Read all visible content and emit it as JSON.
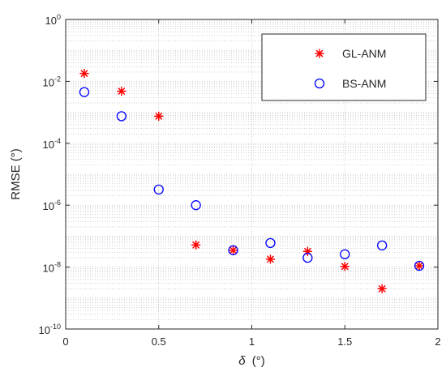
{
  "chart_data": {
    "type": "scatter",
    "title": "",
    "xlabel_symbol": "δ",
    "xlabel_unit": "(°)",
    "ylabel": "RMSE (°)",
    "xlim": [
      0,
      2
    ],
    "ylim": [
      1e-10,
      1
    ],
    "yscale": "log",
    "grid": true,
    "grid_style": "dotted",
    "legend_position": "top-right",
    "x_ticks": [
      {
        "value": 0,
        "label": "0"
      },
      {
        "value": 0.5,
        "label": "0.5"
      },
      {
        "value": 1,
        "label": "1"
      },
      {
        "value": 1.5,
        "label": "1.5"
      },
      {
        "value": 2,
        "label": "2"
      }
    ],
    "y_ticks": [
      {
        "value": 1.0,
        "base": "10",
        "exp": "0"
      },
      {
        "value": 0.01,
        "base": "10",
        "exp": "-2"
      },
      {
        "value": 0.0001,
        "base": "10",
        "exp": "-4"
      },
      {
        "value": 1e-06,
        "base": "10",
        "exp": "-6"
      },
      {
        "value": 1e-08,
        "base": "10",
        "exp": "-8"
      },
      {
        "value": 1e-10,
        "base": "10",
        "exp": "-10"
      }
    ],
    "series": [
      {
        "name": "GL-ANM",
        "marker": "asterisk",
        "color": "#ff0000",
        "x": [
          0.1,
          0.3,
          0.5,
          0.7,
          0.9,
          1.1,
          1.3,
          1.5,
          1.7,
          1.9
        ],
        "y": [
          0.018,
          0.0048,
          0.00075,
          5.2e-08,
          3.5e-08,
          1.8e-08,
          3.2e-08,
          1.05e-08,
          2e-09,
          1.1e-08
        ]
      },
      {
        "name": "BS-ANM",
        "marker": "circle",
        "color": "#0000ff",
        "x": [
          0.1,
          0.3,
          0.5,
          0.7,
          0.9,
          1.1,
          1.3,
          1.5,
          1.7,
          1.9
        ],
        "y": [
          0.0045,
          0.00075,
          3.2e-06,
          1e-06,
          3.5e-08,
          6e-08,
          2e-08,
          2.6e-08,
          5e-08,
          1.1e-08
        ]
      }
    ]
  }
}
